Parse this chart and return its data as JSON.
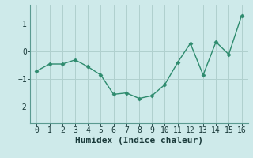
{
  "x": [
    0,
    1,
    2,
    3,
    4,
    5,
    6,
    7,
    8,
    9,
    10,
    11,
    12,
    13,
    14,
    15,
    16
  ],
  "y": [
    -0.7,
    -0.45,
    -0.45,
    -0.3,
    -0.55,
    -0.85,
    -1.55,
    -1.5,
    -1.7,
    -1.6,
    -1.2,
    -0.4,
    0.3,
    -0.85,
    0.35,
    -0.1,
    1.3
  ],
  "line_color": "#2e8b6e",
  "marker": "D",
  "marker_size": 2.5,
  "bg_color": "#ceeaea",
  "grid_color": "#b0d0ce",
  "xlabel": "Humidex (Indice chaleur)",
  "xlim": [
    -0.5,
    16.5
  ],
  "ylim": [
    -2.6,
    1.7
  ],
  "yticks": [
    -2,
    -1,
    0,
    1
  ],
  "xticks": [
    0,
    1,
    2,
    3,
    4,
    5,
    6,
    7,
    8,
    9,
    10,
    11,
    12,
    13,
    14,
    15,
    16
  ],
  "xlabel_fontsize": 8,
  "tick_fontsize": 7,
  "line_width": 1.0
}
